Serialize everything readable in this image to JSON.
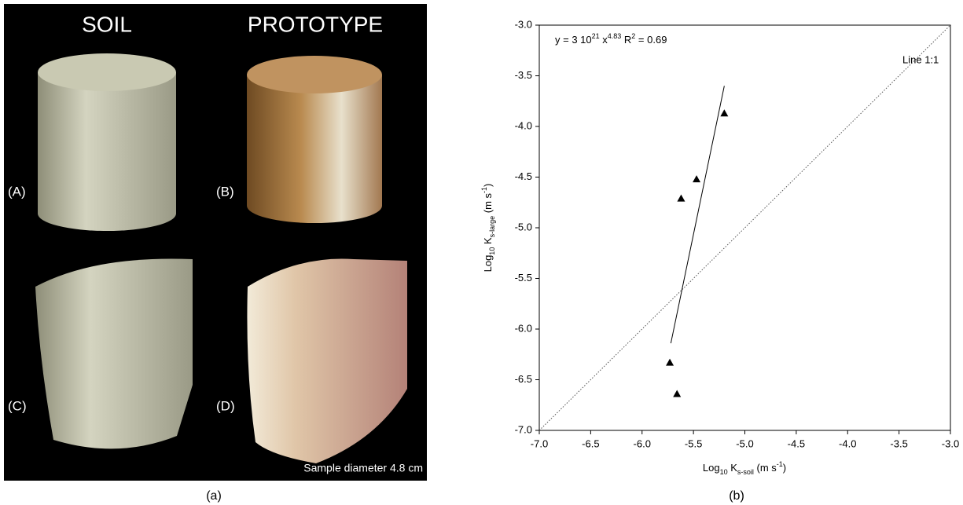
{
  "photo_panel": {
    "column_titles": [
      "SOIL",
      "PROTOTYPE"
    ],
    "panel_labels": [
      "(A)",
      "(B)",
      "(C)",
      "(D)"
    ],
    "caption": "Sample diameter 4.8 cm",
    "figure_label": "(a)"
  },
  "chart_data": {
    "type": "scatter",
    "figure_label": "(b)",
    "x": [
      -5.2,
      -5.47,
      -5.62,
      -5.73,
      -5.66
    ],
    "values": [
      -3.87,
      -4.52,
      -4.71,
      -6.33,
      -6.64
    ],
    "color": "#000000",
    "fit_line": {
      "x": [
        -5.72,
        -5.2
      ],
      "y": [
        -6.14,
        -3.6
      ]
    },
    "identity_line": {
      "x": [
        -7,
        -3
      ],
      "y": [
        -7,
        -3
      ],
      "label": "Line 1:1"
    },
    "annotation": [
      "y = 3 10",
      "21",
      " x",
      "4.83",
      "     R",
      "2",
      " = 0.69"
    ],
    "x_label": [
      "Log",
      "10",
      " K",
      "s-soil",
      " (m s",
      "-1",
      ")"
    ],
    "y_label": [
      "Log",
      "10",
      " K",
      "s-large",
      "  (m s",
      "-1",
      ")"
    ],
    "xlim": [
      -7,
      -3
    ],
    "ylim": [
      -7,
      -3
    ],
    "xticks": [
      {
        "value": -7,
        "label": "-7.0"
      },
      -6.5,
      {
        "value": -6,
        "label": "-6.0"
      },
      -5.5,
      {
        "value": -5,
        "label": "-5.0"
      },
      -4.5,
      {
        "value": -4,
        "label": "-4.0"
      },
      -3.5,
      {
        "value": -3,
        "label": "-3.0"
      }
    ],
    "yticks": [
      {
        "value": -7,
        "label": "-7.0"
      },
      -6.5,
      {
        "value": -6,
        "label": "-6.0"
      },
      -5.5,
      {
        "value": -5,
        "label": "-5.0"
      },
      -4.5,
      {
        "value": -4,
        "label": "-4.0"
      },
      -3.5,
      {
        "value": -3,
        "label": "-3.0"
      }
    ]
  }
}
